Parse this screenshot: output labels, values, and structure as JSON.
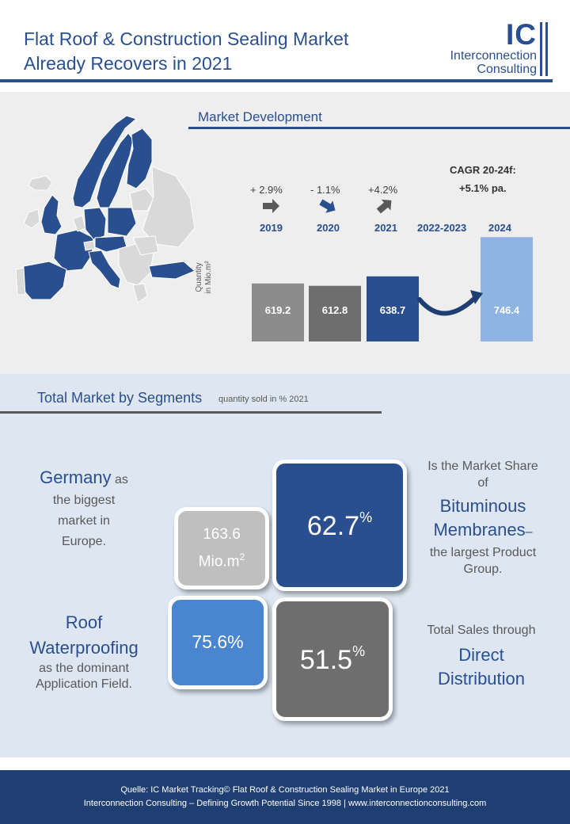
{
  "header": {
    "title_line1": "Flat Roof & Construction Sealing Market",
    "title_line2": "Already Recovers in 2021",
    "logo_mark": "IC",
    "logo_line1": "Interconnection",
    "logo_line2": "Consulting"
  },
  "market_development": {
    "title": "Market Development",
    "cagr_label": "CAGR 20-24f:",
    "cagr_value": "+5.1% pa.",
    "y_label_line1": "Quantity",
    "y_label_line2": "in Mio.m²"
  },
  "chart_data": {
    "type": "bar",
    "title": "Market Development",
    "ylabel": "Quantity in Mio.m²",
    "categories": [
      "2019",
      "2020",
      "2021",
      "2022-2023",
      "2024"
    ],
    "values": [
      619.2,
      612.8,
      638.7,
      null,
      746.4
    ],
    "value_labels": [
      "619.2",
      "612.8",
      "638.7",
      "",
      "746.4"
    ],
    "growth_labels": [
      "+ 2.9%",
      "- 1.1%",
      "+4.2%"
    ],
    "bar_colors": [
      "#8c8c8c",
      "#6e6e6e",
      "#2a4f8f",
      "",
      "#8fb4e3"
    ]
  },
  "segments": {
    "title": "Total Market by Segments",
    "subtitle": "quantity sold in % 2021",
    "germany_title": "Germany",
    "germany_l1": "as",
    "germany_l2": "the biggest",
    "germany_l3": "market in",
    "germany_l4": "Europe.",
    "tile_germany_l1": "163.6",
    "tile_germany_l2": "Mio.m",
    "tile_germany_sup": "2",
    "tile_bitumen_value": "62.7",
    "tile_bitumen_unit": "%",
    "bitumen_l1": "Is the Market Share",
    "bitumen_l2": "of",
    "bitumen_l3": "Bituminous",
    "bitumen_l4": "Membranes",
    "bitumen_dash": "–",
    "bitumen_l5": "the  largest Product",
    "bitumen_l6": "Group.",
    "roof_l1": "Roof",
    "roof_l2": "Waterproofing",
    "roof_l3": "as the dominant",
    "roof_l4": "Application Field.",
    "tile_roof_value": "75.6%",
    "tile_direct_value": "51.5",
    "tile_direct_unit": "%",
    "direct_l1": "Total Sales through",
    "direct_l2": "Direct",
    "direct_l3": "Distribution"
  },
  "footer": {
    "line1": "Quelle: IC Market Tracking© Flat Roof & Construction Sealing Market in Europe 2021",
    "line2": "Interconnection  Consulting – Defining Growth Potential Since 1998 | www.interconnectionconsulting.com"
  },
  "colors": {
    "brand_blue": "#2a4f8f",
    "light_blue": "#8fb4e3",
    "mid_blue": "#4a86d0",
    "gray_dark": "#6e6e6e",
    "gray": "#8c8c8c",
    "gray_light": "#bfbfbf"
  },
  "map": {
    "highlight_color": "#2a4f8f",
    "base_color": "#d9d9d9"
  }
}
